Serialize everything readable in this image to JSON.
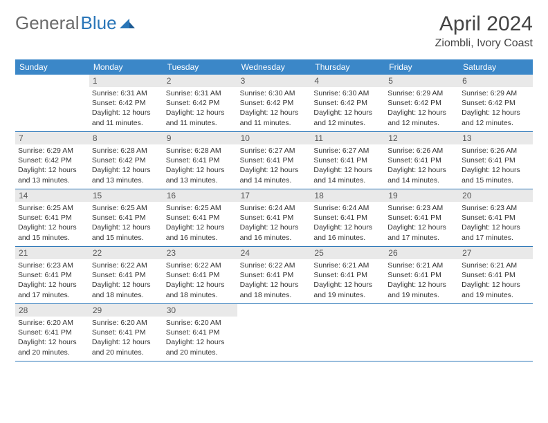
{
  "brand": {
    "word1": "General",
    "word2": "Blue"
  },
  "title": "April 2024",
  "location": "Ziombli, Ivory Coast",
  "colors": {
    "header_bg": "#3b87c8",
    "header_text": "#ffffff",
    "daynum_bg": "#e9e9e9",
    "week_border": "#2a76b8",
    "logo_gray": "#6b6b6b",
    "logo_blue": "#2a76b8"
  },
  "dow": [
    "Sunday",
    "Monday",
    "Tuesday",
    "Wednesday",
    "Thursday",
    "Friday",
    "Saturday"
  ],
  "weeks": [
    [
      {
        "n": "",
        "sr": "",
        "ss": "",
        "dl": ""
      },
      {
        "n": "1",
        "sr": "Sunrise: 6:31 AM",
        "ss": "Sunset: 6:42 PM",
        "dl": "Daylight: 12 hours and 11 minutes."
      },
      {
        "n": "2",
        "sr": "Sunrise: 6:31 AM",
        "ss": "Sunset: 6:42 PM",
        "dl": "Daylight: 12 hours and 11 minutes."
      },
      {
        "n": "3",
        "sr": "Sunrise: 6:30 AM",
        "ss": "Sunset: 6:42 PM",
        "dl": "Daylight: 12 hours and 11 minutes."
      },
      {
        "n": "4",
        "sr": "Sunrise: 6:30 AM",
        "ss": "Sunset: 6:42 PM",
        "dl": "Daylight: 12 hours and 12 minutes."
      },
      {
        "n": "5",
        "sr": "Sunrise: 6:29 AM",
        "ss": "Sunset: 6:42 PM",
        "dl": "Daylight: 12 hours and 12 minutes."
      },
      {
        "n": "6",
        "sr": "Sunrise: 6:29 AM",
        "ss": "Sunset: 6:42 PM",
        "dl": "Daylight: 12 hours and 12 minutes."
      }
    ],
    [
      {
        "n": "7",
        "sr": "Sunrise: 6:29 AM",
        "ss": "Sunset: 6:42 PM",
        "dl": "Daylight: 12 hours and 13 minutes."
      },
      {
        "n": "8",
        "sr": "Sunrise: 6:28 AM",
        "ss": "Sunset: 6:42 PM",
        "dl": "Daylight: 12 hours and 13 minutes."
      },
      {
        "n": "9",
        "sr": "Sunrise: 6:28 AM",
        "ss": "Sunset: 6:41 PM",
        "dl": "Daylight: 12 hours and 13 minutes."
      },
      {
        "n": "10",
        "sr": "Sunrise: 6:27 AM",
        "ss": "Sunset: 6:41 PM",
        "dl": "Daylight: 12 hours and 14 minutes."
      },
      {
        "n": "11",
        "sr": "Sunrise: 6:27 AM",
        "ss": "Sunset: 6:41 PM",
        "dl": "Daylight: 12 hours and 14 minutes."
      },
      {
        "n": "12",
        "sr": "Sunrise: 6:26 AM",
        "ss": "Sunset: 6:41 PM",
        "dl": "Daylight: 12 hours and 14 minutes."
      },
      {
        "n": "13",
        "sr": "Sunrise: 6:26 AM",
        "ss": "Sunset: 6:41 PM",
        "dl": "Daylight: 12 hours and 15 minutes."
      }
    ],
    [
      {
        "n": "14",
        "sr": "Sunrise: 6:25 AM",
        "ss": "Sunset: 6:41 PM",
        "dl": "Daylight: 12 hours and 15 minutes."
      },
      {
        "n": "15",
        "sr": "Sunrise: 6:25 AM",
        "ss": "Sunset: 6:41 PM",
        "dl": "Daylight: 12 hours and 15 minutes."
      },
      {
        "n": "16",
        "sr": "Sunrise: 6:25 AM",
        "ss": "Sunset: 6:41 PM",
        "dl": "Daylight: 12 hours and 16 minutes."
      },
      {
        "n": "17",
        "sr": "Sunrise: 6:24 AM",
        "ss": "Sunset: 6:41 PM",
        "dl": "Daylight: 12 hours and 16 minutes."
      },
      {
        "n": "18",
        "sr": "Sunrise: 6:24 AM",
        "ss": "Sunset: 6:41 PM",
        "dl": "Daylight: 12 hours and 16 minutes."
      },
      {
        "n": "19",
        "sr": "Sunrise: 6:23 AM",
        "ss": "Sunset: 6:41 PM",
        "dl": "Daylight: 12 hours and 17 minutes."
      },
      {
        "n": "20",
        "sr": "Sunrise: 6:23 AM",
        "ss": "Sunset: 6:41 PM",
        "dl": "Daylight: 12 hours and 17 minutes."
      }
    ],
    [
      {
        "n": "21",
        "sr": "Sunrise: 6:23 AM",
        "ss": "Sunset: 6:41 PM",
        "dl": "Daylight: 12 hours and 17 minutes."
      },
      {
        "n": "22",
        "sr": "Sunrise: 6:22 AM",
        "ss": "Sunset: 6:41 PM",
        "dl": "Daylight: 12 hours and 18 minutes."
      },
      {
        "n": "23",
        "sr": "Sunrise: 6:22 AM",
        "ss": "Sunset: 6:41 PM",
        "dl": "Daylight: 12 hours and 18 minutes."
      },
      {
        "n": "24",
        "sr": "Sunrise: 6:22 AM",
        "ss": "Sunset: 6:41 PM",
        "dl": "Daylight: 12 hours and 18 minutes."
      },
      {
        "n": "25",
        "sr": "Sunrise: 6:21 AM",
        "ss": "Sunset: 6:41 PM",
        "dl": "Daylight: 12 hours and 19 minutes."
      },
      {
        "n": "26",
        "sr": "Sunrise: 6:21 AM",
        "ss": "Sunset: 6:41 PM",
        "dl": "Daylight: 12 hours and 19 minutes."
      },
      {
        "n": "27",
        "sr": "Sunrise: 6:21 AM",
        "ss": "Sunset: 6:41 PM",
        "dl": "Daylight: 12 hours and 19 minutes."
      }
    ],
    [
      {
        "n": "28",
        "sr": "Sunrise: 6:20 AM",
        "ss": "Sunset: 6:41 PM",
        "dl": "Daylight: 12 hours and 20 minutes."
      },
      {
        "n": "29",
        "sr": "Sunrise: 6:20 AM",
        "ss": "Sunset: 6:41 PM",
        "dl": "Daylight: 12 hours and 20 minutes."
      },
      {
        "n": "30",
        "sr": "Sunrise: 6:20 AM",
        "ss": "Sunset: 6:41 PM",
        "dl": "Daylight: 12 hours and 20 minutes."
      },
      {
        "n": "",
        "sr": "",
        "ss": "",
        "dl": ""
      },
      {
        "n": "",
        "sr": "",
        "ss": "",
        "dl": ""
      },
      {
        "n": "",
        "sr": "",
        "ss": "",
        "dl": ""
      },
      {
        "n": "",
        "sr": "",
        "ss": "",
        "dl": ""
      }
    ]
  ]
}
